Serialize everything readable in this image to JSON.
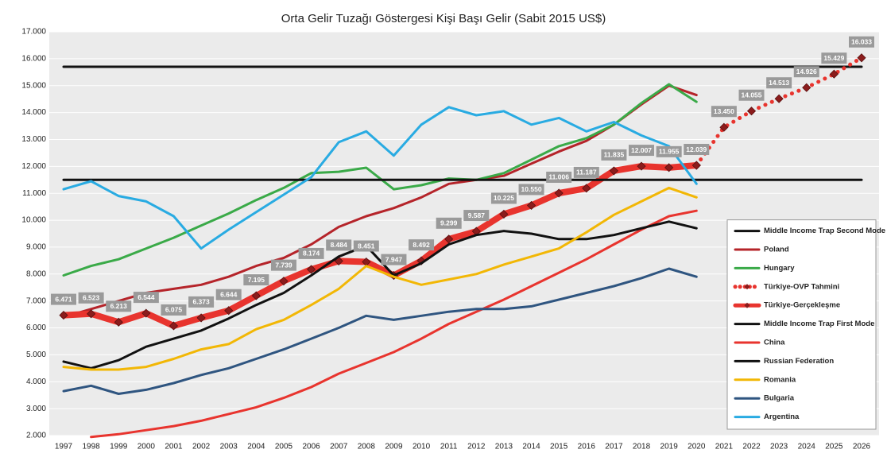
{
  "chart_data": {
    "type": "line",
    "title": "Orta Gelir Tuzağı Göstergesi Kişi Başı Gelir (Sabit 2015 US$)",
    "categories": [
      "1997",
      "1998",
      "1999",
      "2000",
      "2001",
      "2002",
      "2003",
      "2004",
      "2005",
      "2006",
      "2007",
      "2008",
      "2009",
      "2010",
      "2011",
      "2012",
      "2013",
      "2014",
      "2015",
      "2016",
      "2017",
      "2018",
      "2019",
      "2020",
      "2021",
      "2022",
      "2023",
      "2024",
      "2025",
      "2026"
    ],
    "ylim": [
      2000,
      17000
    ],
    "yticks": [
      {
        "value": 2000,
        "label": "2.000"
      },
      {
        "value": 3000,
        "label": "3.000"
      },
      {
        "value": 4000,
        "label": "4.000"
      },
      {
        "value": 5000,
        "label": "5.000"
      },
      {
        "value": 6000,
        "label": "6.000"
      },
      {
        "value": 7000,
        "label": "7.000"
      },
      {
        "value": 8000,
        "label": "8.000"
      },
      {
        "value": 9000,
        "label": "9.000"
      },
      {
        "value": 10000,
        "label": "10.000"
      },
      {
        "value": 11000,
        "label": "11.000"
      },
      {
        "value": 12000,
        "label": "12.000"
      },
      {
        "value": 13000,
        "label": "13.000"
      },
      {
        "value": 14000,
        "label": "14.000"
      },
      {
        "value": 15000,
        "label": "15.000"
      },
      {
        "value": 16000,
        "label": "16.000"
      },
      {
        "value": 17000,
        "label": "17.000"
      }
    ],
    "grid": true,
    "legend": "lower right",
    "series": [
      {
        "name": "Middle Income Trap Second Mode",
        "color": "#111111",
        "line_width": 3,
        "values": [
          15700,
          15700,
          15700,
          15700,
          15700,
          15700,
          15700,
          15700,
          15700,
          15700,
          15700,
          15700,
          15700,
          15700,
          15700,
          15700,
          15700,
          15700,
          15700,
          15700,
          15700,
          15700,
          15700,
          15700,
          15700,
          15700,
          15700,
          15700,
          15700,
          15700
        ]
      },
      {
        "name": "Poland",
        "color": "#b5242a",
        "line_width": 3,
        "values": [
          6400,
          6700,
          7000,
          7300,
          7450,
          7600,
          7900,
          8300,
          8600,
          9100,
          9750,
          10150,
          10450,
          10850,
          11350,
          11500,
          11650,
          12100,
          12550,
          12950,
          13550,
          14300,
          15000,
          14650,
          null,
          null,
          null,
          null,
          null,
          null
        ]
      },
      {
        "name": "Hungary",
        "color": "#3aaa48",
        "line_width": 3,
        "values": [
          7950,
          8300,
          8550,
          8950,
          9350,
          9800,
          10250,
          10750,
          11200,
          11750,
          11800,
          11950,
          11150,
          11300,
          11550,
          11500,
          11750,
          12250,
          12750,
          13050,
          13550,
          14350,
          15050,
          14400,
          null,
          null,
          null,
          null,
          null,
          null
        ]
      },
      {
        "name": "Türkiye-OVP Tahmini",
        "color": "#e8342e",
        "line_width": 5,
        "dash": "dotted",
        "marker": "diamond",
        "values": [
          null,
          null,
          null,
          null,
          null,
          null,
          null,
          null,
          null,
          null,
          null,
          null,
          null,
          null,
          null,
          null,
          null,
          null,
          null,
          null,
          null,
          null,
          null,
          12039,
          13450,
          14055,
          14513,
          14926,
          15429,
          16033
        ],
        "value_labels": [
          null,
          null,
          null,
          null,
          null,
          null,
          null,
          null,
          null,
          null,
          null,
          null,
          null,
          null,
          null,
          null,
          null,
          null,
          null,
          null,
          null,
          null,
          null,
          null,
          "13.450",
          "14.055",
          "14.513",
          "14.926",
          "15.429",
          "16.033"
        ]
      },
      {
        "name": "Türkiye-Gerçekleşme",
        "color": "#e8342e",
        "line_width": 8,
        "marker": "diamond",
        "values": [
          6471,
          6523,
          6213,
          6544,
          6075,
          6373,
          6644,
          7195,
          7739,
          8174,
          8484,
          8451,
          7947,
          8492,
          9299,
          9587,
          10225,
          10550,
          11006,
          11187,
          11835,
          12007,
          11955,
          12039,
          null,
          null,
          null,
          null,
          null,
          null
        ],
        "value_labels": [
          "6.471",
          "6.523",
          "6.213",
          "6.544",
          "6.075",
          "6.373",
          "6.644",
          "7.195",
          "7.739",
          "8.174",
          "8.484",
          "8.451",
          "7.947",
          "8.492",
          "9.299",
          "9.587",
          "10.225",
          "10.550",
          "11.006",
          "11.187",
          "11.835",
          "12.007",
          "11.955",
          "12.039",
          null,
          null,
          null,
          null,
          null,
          null
        ]
      },
      {
        "name": "Middle Income Trap First Mode",
        "color": "#111111",
        "line_width": 3,
        "values": [
          11500,
          11500,
          11500,
          11500,
          11500,
          11500,
          11500,
          11500,
          11500,
          11500,
          11500,
          11500,
          11500,
          11500,
          11500,
          11500,
          11500,
          11500,
          11500,
          11500,
          11500,
          11500,
          11500,
          11500,
          11500,
          11500,
          11500,
          11500,
          11500,
          11500
        ]
      },
      {
        "name": "China",
        "color": "#e8342e",
        "line_width": 3,
        "values": [
          null,
          1950,
          2050,
          2200,
          2350,
          2550,
          2800,
          3050,
          3400,
          3800,
          4300,
          4700,
          5100,
          5600,
          6150,
          6600,
          7050,
          7550,
          8050,
          8550,
          9100,
          9650,
          10150,
          10350,
          null,
          null,
          null,
          null,
          null,
          null
        ]
      },
      {
        "name": "Russian Federation",
        "color": "#111111",
        "line_width": 3,
        "values": [
          4750,
          4500,
          4800,
          5300,
          5600,
          5900,
          6350,
          6850,
          7300,
          7950,
          8650,
          9050,
          7950,
          8400,
          9100,
          9450,
          9600,
          9500,
          9300,
          9300,
          9450,
          9700,
          9950,
          9700,
          null,
          null,
          null,
          null,
          null,
          null
        ]
      },
      {
        "name": "Romania",
        "color": "#f2b705",
        "line_width": 3,
        "values": [
          4550,
          4450,
          4450,
          4550,
          4850,
          5200,
          5400,
          5950,
          6300,
          6850,
          7450,
          8300,
          7900,
          7600,
          7800,
          8000,
          8350,
          8650,
          8950,
          9550,
          10200,
          10700,
          11200,
          10850,
          null,
          null,
          null,
          null,
          null,
          null
        ]
      },
      {
        "name": "Bulgaria",
        "color": "#2f5580",
        "line_width": 3,
        "values": [
          3650,
          3850,
          3550,
          3700,
          3950,
          4250,
          4500,
          4850,
          5200,
          5600,
          6000,
          6450,
          6300,
          6450,
          6600,
          6700,
          6700,
          6800,
          7050,
          7300,
          7550,
          7850,
          8200,
          7900,
          null,
          null,
          null,
          null,
          null,
          null
        ]
      },
      {
        "name": "Argentina",
        "color": "#29abe2",
        "line_width": 3,
        "values": [
          11150,
          11450,
          10900,
          10700,
          10150,
          8950,
          9650,
          10300,
          10950,
          11600,
          12900,
          13300,
          12400,
          13550,
          14200,
          13900,
          14050,
          13550,
          13800,
          13300,
          13650,
          13150,
          12750,
          11350,
          null,
          null,
          null,
          null,
          null,
          null
        ]
      }
    ]
  }
}
